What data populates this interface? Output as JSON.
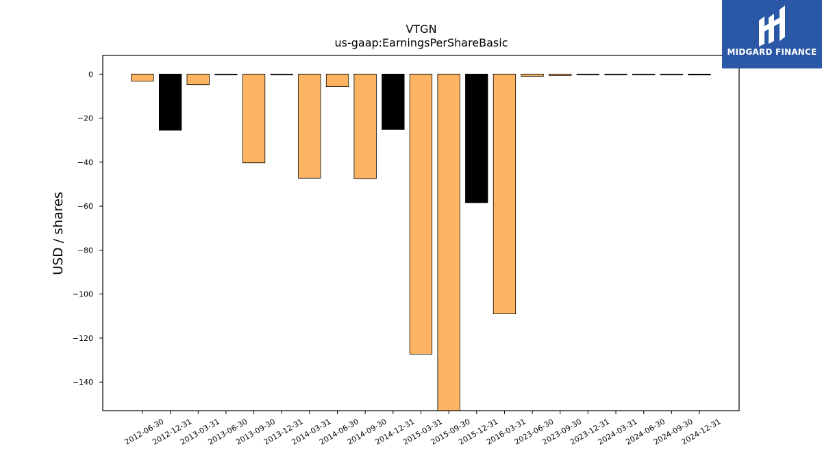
{
  "brand": {
    "name": "MIDGARD FINANCE",
    "background": "#2b58a6"
  },
  "chart_data": {
    "type": "bar",
    "title": "VTGN",
    "subtitle": "us-gaap:EarningsPerShareBasic",
    "ylabel": "USD / shares",
    "xlabel": "",
    "ylim": [
      -153,
      8.5
    ],
    "yticks": [
      0,
      -20,
      -40,
      -60,
      -80,
      -100,
      -120,
      -140
    ],
    "grid": false,
    "categories": [
      "2012-06-30",
      "2012-12-31",
      "2013-03-31",
      "2013-06-30",
      "2013-09-30",
      "2013-12-31",
      "2014-03-31",
      "2014-06-30",
      "2014-09-30",
      "2014-12-31",
      "2015-03-31",
      "2015-09-30",
      "2015-12-31",
      "2016-03-31",
      "2023-06-30",
      "2023-09-30",
      "2023-12-31",
      "2024-03-31",
      "2024-06-30",
      "2024-09-30",
      "2024-12-31"
    ],
    "values": [
      -3.2,
      -25.5,
      -4.8,
      -0.1,
      -40.3,
      -0.2,
      -47.3,
      -5.7,
      -47.5,
      -25.2,
      -127.3,
      -155,
      -58.5,
      -109,
      -1.0,
      -0.7,
      -0.1,
      -0.1,
      -0.3,
      -0.3,
      -0.4
    ],
    "bar_colors": [
      "#fdb462",
      "#000000",
      "#fdb462",
      "#000000",
      "#fdb462",
      "#000000",
      "#fdb462",
      "#fdb462",
      "#fdb462",
      "#000000",
      "#fdb462",
      "#fdb462",
      "#000000",
      "#fdb462",
      "#fdb462",
      "#fdb462",
      "#000000",
      "#000000",
      "#000000",
      "#000000",
      "#000000"
    ]
  }
}
